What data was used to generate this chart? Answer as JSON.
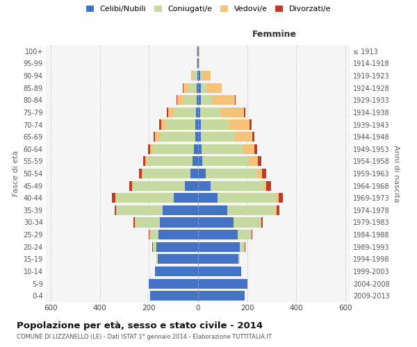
{
  "age_groups": [
    "0-4",
    "5-9",
    "10-14",
    "15-19",
    "20-24",
    "25-29",
    "30-34",
    "35-39",
    "40-44",
    "45-49",
    "50-54",
    "55-59",
    "60-64",
    "65-69",
    "70-74",
    "75-79",
    "80-84",
    "85-89",
    "90-94",
    "95-99",
    "100+"
  ],
  "birth_years": [
    "2009-2013",
    "2004-2008",
    "1999-2003",
    "1994-1998",
    "1989-1993",
    "1984-1988",
    "1979-1983",
    "1974-1978",
    "1969-1973",
    "1964-1968",
    "1959-1963",
    "1954-1958",
    "1949-1953",
    "1944-1948",
    "1939-1943",
    "1934-1938",
    "1929-1933",
    "1924-1928",
    "1919-1923",
    "1914-1918",
    "≤ 1913"
  ],
  "male_celibe": [
    195,
    200,
    175,
    165,
    170,
    160,
    155,
    145,
    100,
    55,
    30,
    22,
    18,
    12,
    10,
    8,
    6,
    5,
    4,
    2,
    2
  ],
  "male_coniugato": [
    0,
    0,
    0,
    5,
    15,
    35,
    100,
    185,
    235,
    210,
    195,
    185,
    165,
    145,
    120,
    90,
    55,
    35,
    15,
    2,
    2
  ],
  "male_vedovo": [
    0,
    0,
    0,
    0,
    0,
    2,
    2,
    3,
    3,
    3,
    5,
    8,
    12,
    18,
    20,
    25,
    25,
    20,
    8,
    1,
    1
  ],
  "male_divorziato": [
    0,
    0,
    0,
    0,
    2,
    3,
    5,
    8,
    12,
    12,
    12,
    10,
    8,
    5,
    8,
    5,
    2,
    2,
    0,
    0,
    0
  ],
  "female_celibe": [
    190,
    200,
    175,
    165,
    170,
    160,
    145,
    120,
    80,
    50,
    30,
    18,
    15,
    10,
    10,
    8,
    10,
    10,
    8,
    2,
    2
  ],
  "female_coniugato": [
    0,
    0,
    0,
    5,
    20,
    55,
    110,
    195,
    240,
    215,
    210,
    190,
    165,
    140,
    115,
    85,
    50,
    25,
    12,
    2,
    1
  ],
  "female_vedovo": [
    0,
    0,
    0,
    0,
    1,
    2,
    3,
    5,
    8,
    12,
    20,
    35,
    50,
    70,
    85,
    95,
    90,
    60,
    30,
    3,
    2
  ],
  "female_divorziato": [
    0,
    0,
    0,
    0,
    1,
    3,
    5,
    12,
    18,
    20,
    18,
    15,
    10,
    8,
    8,
    5,
    3,
    2,
    1,
    0,
    0
  ],
  "color_celibe": "#4472c4",
  "color_coniugato": "#c5d9a0",
  "color_vedovo": "#f5c27a",
  "color_divorziato": "#c0392b",
  "title": "Popolazione per età, sesso e stato civile - 2014",
  "subtitle": "COMUNE DI LIZZANELLO (LE) - Dati ISTAT 1° gennaio 2014 - Elaborazione TUTTITALIA.IT",
  "xlabel_right": "Femmine",
  "ylabel_left": "Fasce di età",
  "ylabel_right": "Anni di nascita",
  "xlim": 620,
  "bg_color": "#f5f5f5",
  "grid_color": "#cccccc"
}
